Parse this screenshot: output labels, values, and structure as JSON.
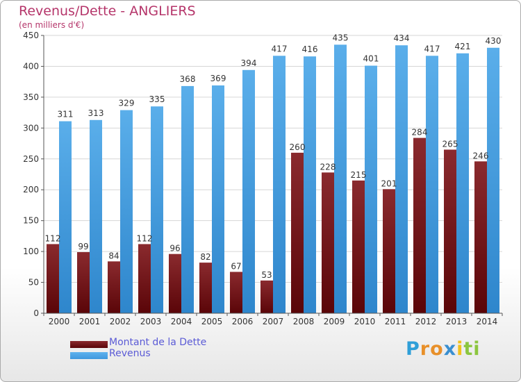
{
  "header": {
    "title": "Revenus/Dette - ANGLIERS",
    "subtitle": "(en milliers d'€)"
  },
  "colors": {
    "dette": "#6b0c10",
    "revenus": "#4aa3e6",
    "text": "#333333",
    "grid": "#d6d6d6",
    "title": "#b5356a",
    "legend_text": "#5b5bd6"
  },
  "chart_data": {
    "type": "bar",
    "title": "Revenus/Dette - ANGLIERS",
    "ylabel": "(en milliers d'€)",
    "xlabel": "",
    "categories": [
      "2000",
      "2001",
      "2002",
      "2003",
      "2004",
      "2005",
      "2006",
      "2007",
      "2008",
      "2009",
      "2010",
      "2011",
      "2012",
      "2013",
      "2014"
    ],
    "series": [
      {
        "name": "Montant de la Dette",
        "values": [
          112,
          99,
          84,
          112,
          96,
          82,
          67,
          53,
          260,
          228,
          215,
          201,
          284,
          265,
          246
        ]
      },
      {
        "name": "Revenus",
        "values": [
          311,
          313,
          329,
          335,
          368,
          369,
          394,
          417,
          416,
          435,
          401,
          434,
          417,
          421,
          430
        ]
      }
    ],
    "ylim": [
      0,
      450
    ],
    "yticks": [
      0,
      50,
      100,
      150,
      200,
      250,
      300,
      350,
      400,
      450
    ],
    "grid": true,
    "legend": "bottom-left"
  },
  "legend": {
    "dette_label": "Montant de la Dette",
    "revenus_label": "Revenus"
  },
  "logo": {
    "text": "Proxiti",
    "letters": [
      "P",
      "r",
      "o",
      "x",
      "i",
      "t",
      "i"
    ],
    "letter_colors": [
      "#2f9fd8",
      "#e8902a",
      "#e8902a",
      "#3a8fd0",
      "#f2c21c",
      "#8cc63f",
      "#8cc63f"
    ]
  }
}
